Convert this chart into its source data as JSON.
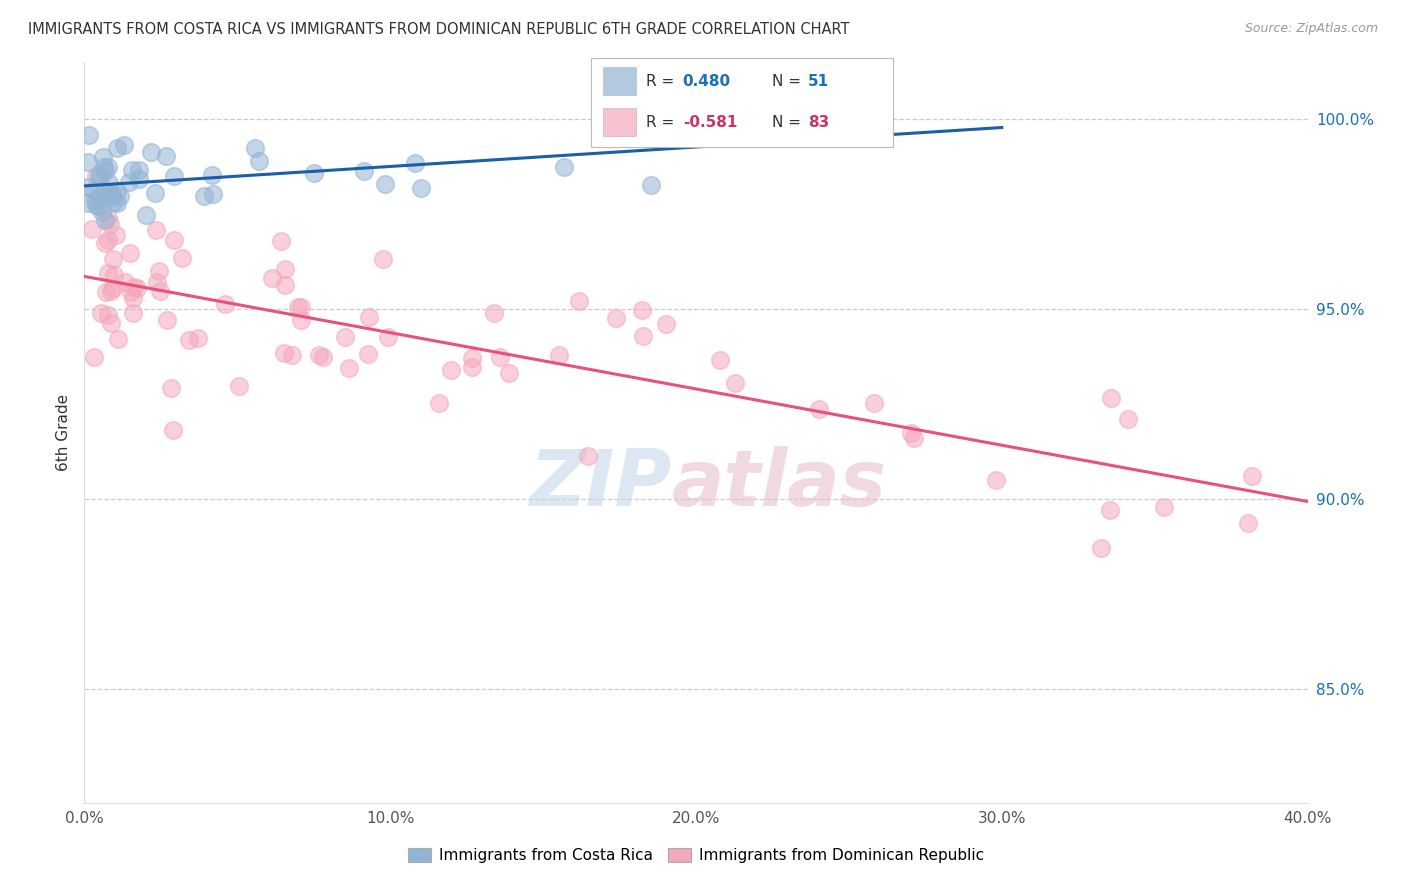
{
  "title": "IMMIGRANTS FROM COSTA RICA VS IMMIGRANTS FROM DOMINICAN REPUBLIC 6TH GRADE CORRELATION CHART",
  "source": "Source: ZipAtlas.com",
  "ylabel": "6th Grade",
  "legend_label1": "Immigrants from Costa Rica",
  "legend_label2": "Immigrants from Dominican Republic",
  "legend_R1": "R = 0.480",
  "legend_N1": "N = 51",
  "legend_R2": "R = -0.581",
  "legend_N2": "N = 83",
  "color_blue": "#92b4d4",
  "color_pink": "#f4a8bc",
  "color_blue_line": "#1a5fa8",
  "color_pink_line": "#e8527a",
  "color_blue_text": "#1a6fba",
  "color_pink_text": "#cc3366",
  "xlim": [
    0.0,
    0.4
  ],
  "ylim": [
    82.0,
    101.5
  ],
  "yticks": [
    85.0,
    90.0,
    95.0,
    100.0
  ],
  "xticks": [
    0.0,
    0.1,
    0.2,
    0.3,
    0.4
  ],
  "xtick_labels": [
    "0.0%",
    "10.0%",
    "20.0%",
    "30.0%",
    "40.0%"
  ]
}
